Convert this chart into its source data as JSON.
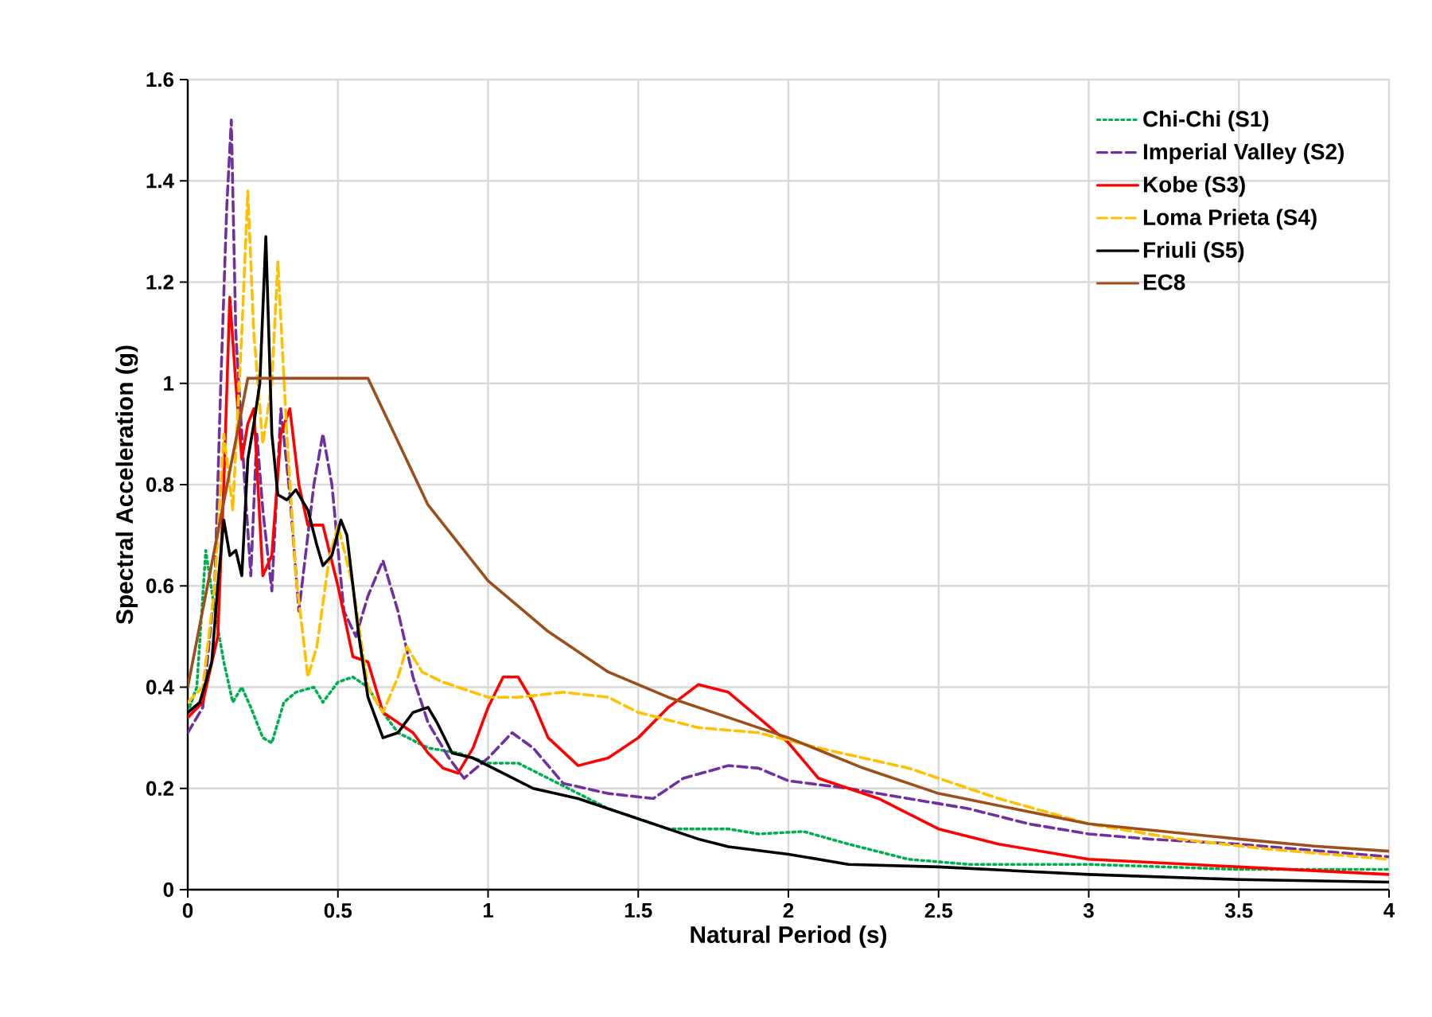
{
  "chart_data": {
    "type": "line",
    "xlabel": "Natural Period (s)",
    "ylabel": "Spectral Acceleration (g)",
    "xlim": [
      0,
      4
    ],
    "ylim": [
      0,
      1.6
    ],
    "xticks": [
      0,
      0.5,
      1,
      1.5,
      2,
      2.5,
      3,
      3.5,
      4
    ],
    "yticks": [
      0,
      0.2,
      0.4,
      0.6,
      0.8,
      1,
      1.2,
      1.4,
      1.6
    ],
    "grid": true,
    "legend": "top right",
    "marker": "none",
    "series": [
      {
        "name": "Chi-Chi (S1)",
        "color": "#00b050",
        "line_style": "dotted",
        "x": [
          0,
          0.03,
          0.06,
          0.09,
          0.12,
          0.15,
          0.18,
          0.21,
          0.25,
          0.28,
          0.32,
          0.36,
          0.42,
          0.45,
          0.5,
          0.55,
          0.6,
          0.65,
          0.7,
          0.8,
          0.9,
          1.0,
          1.1,
          1.2,
          1.3,
          1.4,
          1.5,
          1.6,
          1.8,
          1.9,
          2.05,
          2.2,
          2.4,
          2.6,
          3,
          3.5,
          4
        ],
        "values": [
          0.35,
          0.4,
          0.67,
          0.55,
          0.45,
          0.37,
          0.4,
          0.36,
          0.3,
          0.29,
          0.37,
          0.39,
          0.4,
          0.37,
          0.41,
          0.42,
          0.4,
          0.35,
          0.31,
          0.28,
          0.27,
          0.25,
          0.25,
          0.22,
          0.19,
          0.16,
          0.14,
          0.12,
          0.12,
          0.11,
          0.115,
          0.09,
          0.06,
          0.05,
          0.05,
          0.04,
          0.04
        ]
      },
      {
        "name": "Imperial Valley (S2)",
        "color": "#7030a0",
        "line_style": "dashed",
        "x": [
          0,
          0.05,
          0.09,
          0.11,
          0.13,
          0.145,
          0.16,
          0.19,
          0.21,
          0.23,
          0.25,
          0.28,
          0.31,
          0.34,
          0.37,
          0.42,
          0.45,
          0.48,
          0.52,
          0.56,
          0.6,
          0.65,
          0.7,
          0.75,
          0.8,
          0.87,
          0.92,
          1.0,
          1.08,
          1.15,
          1.25,
          1.4,
          1.55,
          1.65,
          1.8,
          1.9,
          2.0,
          2.2,
          2.4,
          2.6,
          2.8,
          3.0,
          3.2,
          3.5,
          4
        ],
        "values": [
          0.31,
          0.36,
          0.6,
          1.0,
          1.35,
          1.52,
          1.1,
          0.8,
          0.62,
          0.9,
          0.75,
          0.59,
          0.95,
          0.78,
          0.55,
          0.8,
          0.9,
          0.8,
          0.55,
          0.5,
          0.58,
          0.65,
          0.55,
          0.42,
          0.33,
          0.26,
          0.22,
          0.26,
          0.31,
          0.28,
          0.21,
          0.19,
          0.18,
          0.22,
          0.245,
          0.24,
          0.215,
          0.2,
          0.18,
          0.16,
          0.13,
          0.11,
          0.1,
          0.09,
          0.065
        ]
      },
      {
        "name": "Kobe (S3)",
        "color": "#ff0000",
        "line_style": "solid",
        "x": [
          0,
          0.05,
          0.1,
          0.12,
          0.14,
          0.16,
          0.18,
          0.2,
          0.22,
          0.25,
          0.28,
          0.31,
          0.34,
          0.37,
          0.4,
          0.45,
          0.5,
          0.55,
          0.6,
          0.65,
          0.7,
          0.75,
          0.8,
          0.85,
          0.9,
          0.95,
          1.0,
          1.05,
          1.1,
          1.15,
          1.2,
          1.3,
          1.4,
          1.5,
          1.6,
          1.7,
          1.8,
          1.9,
          2.0,
          2.1,
          2.3,
          2.5,
          2.7,
          3.0,
          3.5,
          4
        ],
        "values": [
          0.34,
          0.37,
          0.5,
          0.8,
          1.17,
          1.0,
          0.85,
          0.92,
          0.95,
          0.62,
          0.66,
          0.9,
          0.95,
          0.8,
          0.72,
          0.72,
          0.6,
          0.46,
          0.45,
          0.35,
          0.33,
          0.31,
          0.27,
          0.24,
          0.23,
          0.28,
          0.36,
          0.42,
          0.42,
          0.37,
          0.3,
          0.245,
          0.26,
          0.3,
          0.36,
          0.405,
          0.39,
          0.34,
          0.29,
          0.22,
          0.18,
          0.12,
          0.09,
          0.06,
          0.045,
          0.03
        ]
      },
      {
        "name": "Loma Prieta (S4)",
        "color": "#ffc000",
        "line_style": "dashed",
        "x": [
          0,
          0.05,
          0.09,
          0.12,
          0.15,
          0.18,
          0.2,
          0.22,
          0.25,
          0.28,
          0.3,
          0.33,
          0.36,
          0.4,
          0.43,
          0.47,
          0.5,
          0.55,
          0.6,
          0.65,
          0.7,
          0.73,
          0.78,
          0.85,
          0.95,
          1.0,
          1.1,
          1.25,
          1.4,
          1.5,
          1.7,
          1.9,
          2.1,
          2.4,
          2.7,
          3.0,
          3.3,
          3.6,
          4
        ],
        "values": [
          0.37,
          0.4,
          0.6,
          0.9,
          0.75,
          1.1,
          1.38,
          1.1,
          0.88,
          1.0,
          1.24,
          0.9,
          0.62,
          0.42,
          0.48,
          0.65,
          0.72,
          0.6,
          0.4,
          0.35,
          0.42,
          0.48,
          0.43,
          0.41,
          0.39,
          0.38,
          0.38,
          0.39,
          0.38,
          0.35,
          0.32,
          0.31,
          0.28,
          0.24,
          0.18,
          0.13,
          0.1,
          0.08,
          0.06
        ]
      },
      {
        "name": "Friuli (S5)",
        "color": "#000000",
        "line_style": "solid",
        "x": [
          0,
          0.04,
          0.08,
          0.1,
          0.12,
          0.14,
          0.16,
          0.18,
          0.2,
          0.22,
          0.24,
          0.26,
          0.28,
          0.3,
          0.33,
          0.36,
          0.4,
          0.43,
          0.45,
          0.48,
          0.51,
          0.53,
          0.57,
          0.6,
          0.65,
          0.7,
          0.75,
          0.8,
          0.83,
          0.88,
          0.95,
          1.05,
          1.15,
          1.3,
          1.5,
          1.7,
          1.8,
          2.0,
          2.2,
          2.5,
          3,
          3.5,
          4
        ],
        "values": [
          0.35,
          0.37,
          0.45,
          0.6,
          0.73,
          0.66,
          0.67,
          0.62,
          0.85,
          0.92,
          1.0,
          1.29,
          0.9,
          0.78,
          0.77,
          0.79,
          0.75,
          0.68,
          0.64,
          0.66,
          0.73,
          0.7,
          0.5,
          0.38,
          0.3,
          0.31,
          0.35,
          0.36,
          0.33,
          0.27,
          0.26,
          0.23,
          0.2,
          0.18,
          0.14,
          0.1,
          0.085,
          0.07,
          0.05,
          0.045,
          0.03,
          0.02,
          0.015
        ]
      },
      {
        "name": "EC8",
        "color": "#9c4f1d",
        "line_style": "solid",
        "x": [
          0,
          0.2,
          0.6,
          0.8,
          1,
          1.2,
          1.4,
          1.6,
          1.8,
          2,
          2.25,
          2.5,
          2.75,
          3,
          3.25,
          3.5,
          3.75,
          4
        ],
        "values": [
          0.4,
          1.01,
          1.01,
          0.76,
          0.61,
          0.51,
          0.43,
          0.38,
          0.34,
          0.3,
          0.24,
          0.19,
          0.16,
          0.13,
          0.115,
          0.1,
          0.086,
          0.076
        ]
      }
    ]
  }
}
